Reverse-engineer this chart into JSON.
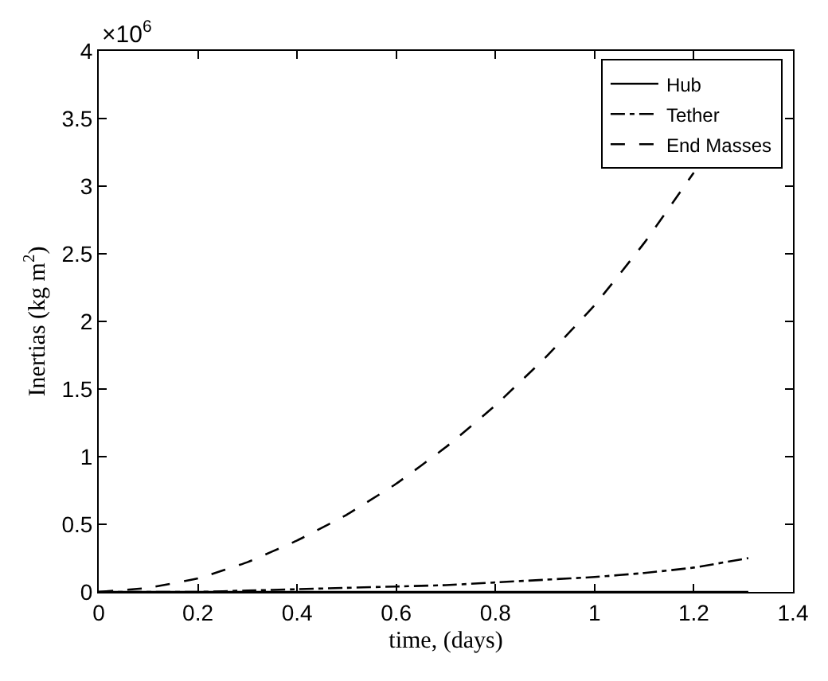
{
  "chart_data": {
    "type": "line",
    "xlabel": "time, (days)",
    "ylabel": "Inertias (kg m$^{2}$)",
    "annotations": [
      "×10$^{6}$"
    ],
    "xlim": [
      0,
      1.4
    ],
    "xticks": [
      0,
      0.2,
      0.4,
      0.6,
      0.8,
      1,
      1.2,
      1.4
    ],
    "ylim": [
      0,
      4
    ],
    "yticks": [
      0,
      0.5,
      1,
      1.5,
      2,
      2.5,
      3,
      3.5,
      4
    ],
    "legend": "top right",
    "marker": "none",
    "series": [
      {
        "name": "Hub",
        "color": "#000000",
        "line_style": "solid",
        "x": [
          0,
          0.4,
          0.8,
          1.2,
          1.31
        ],
        "values": [
          0,
          0,
          0,
          0,
          0
        ]
      },
      {
        "name": "Tether",
        "color": "#000000",
        "line_style": "dashdot",
        "x": [
          0,
          0.1,
          0.2,
          0.3,
          0.4,
          0.5,
          0.6,
          0.7,
          0.8,
          0.9,
          1.0,
          1.1,
          1.2,
          1.31
        ],
        "values": [
          0,
          0,
          0,
          0.01,
          0.02,
          0.03,
          0.04,
          0.05,
          0.07,
          0.09,
          0.11,
          0.14,
          0.18,
          0.25
        ]
      },
      {
        "name": "End Masses",
        "color": "#000000",
        "line_style": "dashed",
        "x": [
          0,
          0.1,
          0.2,
          0.3,
          0.4,
          0.5,
          0.6,
          0.7,
          0.8,
          0.9,
          1.0,
          1.1,
          1.2
        ],
        "values": [
          0,
          0.03,
          0.1,
          0.22,
          0.38,
          0.57,
          0.8,
          1.07,
          1.38,
          1.73,
          2.12,
          2.58,
          3.1
        ]
      }
    ]
  }
}
